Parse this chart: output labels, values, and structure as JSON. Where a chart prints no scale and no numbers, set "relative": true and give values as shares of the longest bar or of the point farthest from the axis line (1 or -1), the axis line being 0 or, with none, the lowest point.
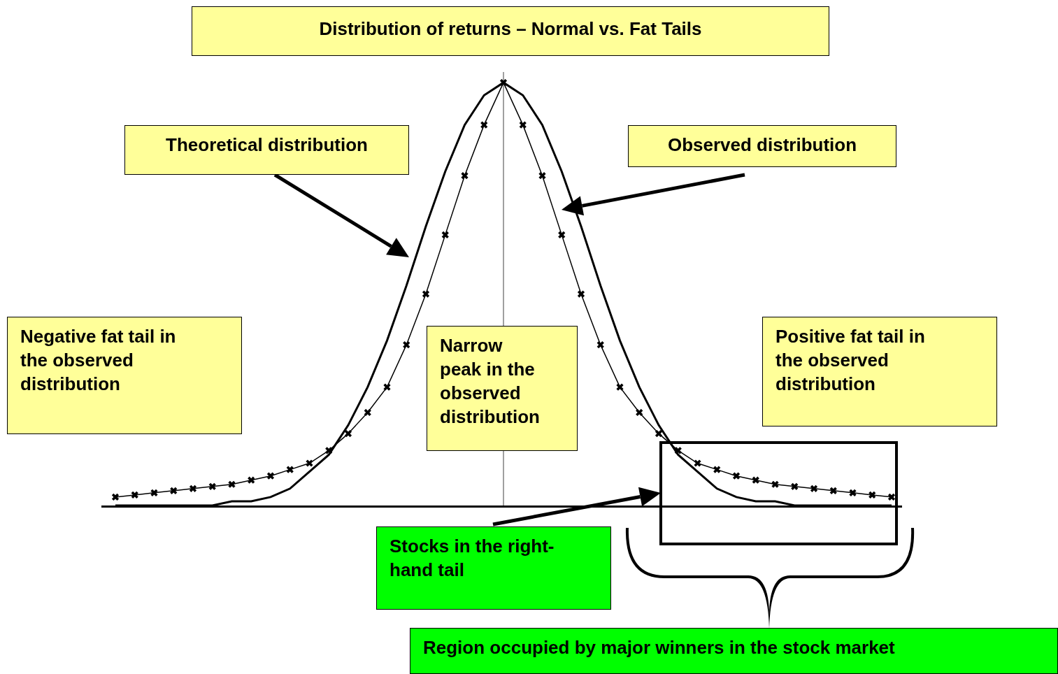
{
  "chart_data": {
    "type": "line",
    "title": "Distribution of returns – Normal vs. Fat Tails",
    "relative": true,
    "grid": false,
    "categories": [
      null,
      null,
      null,
      null,
      null,
      null,
      null,
      null,
      null,
      null,
      null,
      null,
      null,
      null,
      null,
      null,
      null,
      null,
      null,
      null,
      null,
      null,
      null,
      null,
      null,
      null,
      null,
      null,
      null,
      null,
      null,
      null,
      null,
      null,
      null,
      null,
      null,
      null,
      null,
      null,
      null
    ],
    "series": [
      {
        "color": "#000000",
        "marker": "none",
        "line_style": "solid",
        "values": [
          0,
          0,
          0,
          0,
          0,
          0,
          0.01,
          0.01,
          0.02,
          0.04,
          0.08,
          0.12,
          0.19,
          0.28,
          0.39,
          0.52,
          0.66,
          0.79,
          0.9,
          0.97,
          1,
          0.97,
          0.9,
          0.79,
          0.66,
          0.52,
          0.39,
          0.28,
          0.19,
          0.12,
          0.08,
          0.04,
          0.02,
          0.01,
          0.01,
          0,
          0,
          0,
          0,
          0,
          0
        ]
      },
      {
        "color": "#000000",
        "marker": "cross",
        "line_style": "solid",
        "values": [
          0.02,
          0.025,
          0.03,
          0.035,
          0.04,
          0.045,
          0.05,
          0.06,
          0.07,
          0.085,
          0.1,
          0.13,
          0.17,
          0.22,
          0.28,
          0.38,
          0.5,
          0.64,
          0.78,
          0.9,
          1,
          0.9,
          0.78,
          0.64,
          0.5,
          0.38,
          0.28,
          0.22,
          0.17,
          0.13,
          0.1,
          0.085,
          0.07,
          0.06,
          0.05,
          0.045,
          0.04,
          0.035,
          0.03,
          0.025,
          0.02
        ]
      }
    ],
    "annotations": [
      "Theoretical distribution",
      "Observed distribution",
      "Negative fat tail in\nthe observed\ndistribution",
      "Narrow\npeak in the\nobserved\ndistribution",
      "Positive fat tail in\nthe observed\ndistribution",
      "Stocks in the right-\nhand tail",
      "Region occupied by major winners in the stock market"
    ]
  }
}
